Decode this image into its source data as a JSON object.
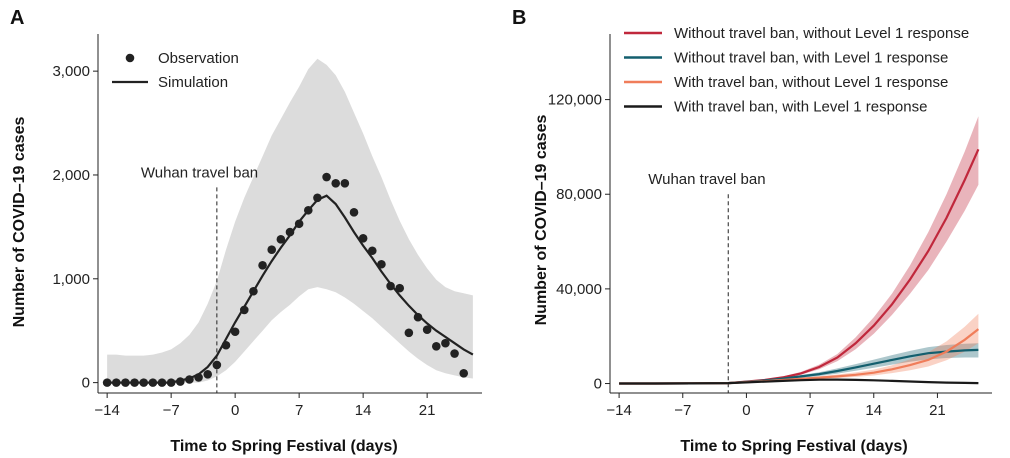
{
  "chart_data": [
    {
      "panel_label": "A",
      "type": "scatter",
      "xlabel": "Time to Spring Festival (days)",
      "ylabel": "Number of COVID–19 cases",
      "xlim": [
        -15,
        27
      ],
      "ylim": [
        -100,
        3300
      ],
      "xticks": [
        -14,
        -7,
        0,
        7,
        14,
        21
      ],
      "xtick_labels": [
        "−14",
        "−7",
        "0",
        "7",
        "14",
        "21"
      ],
      "yticks": [
        0,
        1000,
        2000,
        3000
      ],
      "ytick_labels": [
        "0",
        "1,000",
        "2,000",
        "3,000"
      ],
      "grid": false,
      "legend_position": "top-left",
      "legend": [
        {
          "label": "Observation",
          "marker": "point"
        },
        {
          "label": "Simulation",
          "marker": "line"
        }
      ],
      "annotation": {
        "text": "Wuhan travel ban",
        "x": -2
      },
      "band_color": "#dcdcdc",
      "band": {
        "x": [
          -14,
          -13,
          -12,
          -11,
          -10,
          -9,
          -8,
          -7,
          -6,
          -5,
          -4,
          -3,
          -2,
          -1,
          0,
          1,
          2,
          3,
          4,
          5,
          6,
          7,
          8,
          9,
          10,
          11,
          12,
          13,
          14,
          15,
          16,
          17,
          18,
          19,
          20,
          21,
          22,
          23,
          24,
          25,
          26
        ],
        "lower": [
          0,
          0,
          0,
          0,
          0,
          0,
          0,
          0,
          0,
          0,
          0,
          20,
          60,
          120,
          200,
          300,
          400,
          500,
          600,
          680,
          750,
          830,
          900,
          920,
          900,
          870,
          820,
          760,
          690,
          620,
          540,
          460,
          380,
          300,
          230,
          170,
          120,
          90,
          70,
          50,
          40
        ],
        "upper": [
          270,
          270,
          260,
          260,
          260,
          270,
          290,
          320,
          380,
          460,
          580,
          760,
          980,
          1280,
          1550,
          1780,
          1980,
          2180,
          2380,
          2540,
          2700,
          2850,
          3020,
          3120,
          3060,
          2960,
          2800,
          2600,
          2400,
          2180,
          1980,
          1760,
          1560,
          1380,
          1230,
          1100,
          990,
          920,
          880,
          860,
          840
        ]
      },
      "series": [
        {
          "name": "Observation",
          "kind": "points",
          "color": "#222222",
          "x": [
            -14,
            -13,
            -12,
            -11,
            -10,
            -9,
            -8,
            -7,
            -6,
            -5,
            -4,
            -3,
            -2,
            -1,
            0,
            1,
            2,
            3,
            4,
            5,
            6,
            7,
            8,
            9,
            10,
            11,
            12,
            13,
            14,
            15,
            16,
            17,
            18,
            19,
            20,
            21,
            22,
            23,
            24,
            25
          ],
          "y": [
            0,
            0,
            0,
            0,
            0,
            0,
            0,
            0,
            10,
            30,
            50,
            80,
            170,
            360,
            490,
            700,
            880,
            1130,
            1280,
            1380,
            1450,
            1530,
            1660,
            1780,
            1980,
            1920,
            1920,
            1640,
            1390,
            1270,
            1140,
            930,
            910,
            480,
            630,
            510,
            350,
            380,
            280,
            90
          ]
        },
        {
          "name": "Simulation",
          "kind": "line",
          "color": "#222222",
          "x": [
            -14,
            -13,
            -12,
            -11,
            -10,
            -9,
            -8,
            -7,
            -6,
            -5,
            -4,
            -3,
            -2,
            -1,
            0,
            1,
            2,
            3,
            4,
            5,
            6,
            7,
            8,
            9,
            10,
            11,
            12,
            13,
            14,
            15,
            16,
            17,
            18,
            19,
            20,
            21,
            22,
            23,
            24,
            25,
            26
          ],
          "y": [
            0,
            0,
            0,
            0,
            0,
            0,
            0,
            0,
            20,
            40,
            80,
            150,
            260,
            420,
            580,
            730,
            880,
            1030,
            1170,
            1300,
            1420,
            1550,
            1660,
            1760,
            1800,
            1720,
            1590,
            1450,
            1320,
            1200,
            1070,
            950,
            840,
            740,
            650,
            570,
            500,
            440,
            380,
            320,
            270
          ]
        }
      ]
    },
    {
      "panel_label": "B",
      "type": "line",
      "xlabel": "Time to Spring Festival (days)",
      "ylabel": "Number of COVID–19 cases",
      "xlim": [
        -15,
        27
      ],
      "ylim": [
        -4000,
        138000
      ],
      "xticks": [
        -14,
        -7,
        0,
        7,
        14,
        21
      ],
      "xtick_labels": [
        "−14",
        "−7",
        "0",
        "7",
        "14",
        "21"
      ],
      "yticks": [
        0,
        40000,
        80000,
        120000
      ],
      "ytick_labels": [
        "0",
        "40,000",
        "80,000",
        "120,000"
      ],
      "grid": false,
      "legend_position": "top",
      "annotation": {
        "text": "Wuhan travel ban",
        "x": -2
      },
      "series": [
        {
          "name": "Without travel ban, without Level 1 response",
          "color": "#c0283c",
          "x": [
            -14,
            -10,
            -6,
            -2,
            0,
            2,
            4,
            6,
            8,
            10,
            12,
            14,
            16,
            18,
            20,
            22,
            24,
            25.5
          ],
          "y": [
            0,
            0,
            50,
            200,
            800,
            1500,
            2600,
            4300,
            7000,
            11000,
            17000,
            24500,
            33500,
            44000,
            56000,
            70000,
            86000,
            99000
          ],
          "band_lower": [
            0,
            0,
            0,
            100,
            600,
            1200,
            2200,
            3700,
            6000,
            9500,
            14500,
            21000,
            29000,
            38000,
            48000,
            60000,
            73000,
            84000
          ],
          "band_upper": [
            0,
            0,
            100,
            300,
            1000,
            1800,
            3000,
            4900,
            8000,
            12500,
            19500,
            28000,
            38000,
            50000,
            64000,
            80000,
            98000,
            113000
          ]
        },
        {
          "name": "Without travel ban, with Level 1 response",
          "color": "#135f6e",
          "x": [
            -14,
            -10,
            -6,
            -2,
            0,
            2,
            4,
            6,
            8,
            10,
            12,
            14,
            16,
            18,
            20,
            22,
            24,
            25.5
          ],
          "y": [
            0,
            0,
            50,
            200,
            700,
            1300,
            2100,
            3000,
            4000,
            5300,
            6800,
            8400,
            10000,
            11500,
            12800,
            13500,
            14000,
            14200
          ],
          "band_lower": [
            0,
            0,
            0,
            100,
            500,
            1000,
            1700,
            2400,
            3200,
            4200,
            5400,
            6700,
            8000,
            9200,
            10200,
            10800,
            11000,
            11000
          ],
          "band_upper": [
            0,
            0,
            100,
            300,
            900,
            1600,
            2500,
            3600,
            4800,
            6400,
            8200,
            10100,
            12000,
            13800,
            15400,
            16300,
            16800,
            17000
          ]
        },
        {
          "name": "With travel ban, without Level 1 response",
          "color": "#f07d5a",
          "x": [
            -14,
            -10,
            -6,
            -2,
            0,
            2,
            4,
            6,
            8,
            10,
            12,
            14,
            16,
            18,
            20,
            22,
            24,
            25.5
          ],
          "y": [
            0,
            0,
            50,
            200,
            600,
            1000,
            1500,
            2000,
            2500,
            3000,
            3700,
            4600,
            6000,
            7800,
            10000,
            13500,
            18500,
            23000
          ],
          "band_lower": [
            0,
            0,
            0,
            100,
            400,
            700,
            1100,
            1500,
            1900,
            2300,
            2800,
            3400,
            4400,
            5600,
            7200,
            9800,
            13500,
            17000
          ],
          "band_upper": [
            0,
            0,
            100,
            300,
            800,
            1300,
            1900,
            2500,
            3100,
            3800,
            4700,
            5900,
            7700,
            10200,
            13200,
            17800,
            24000,
            29500
          ]
        },
        {
          "name": "With travel ban, with Level 1 response",
          "color": "#1a1a1a",
          "x": [
            -14,
            -10,
            -6,
            -2,
            0,
            2,
            4,
            6,
            8,
            10,
            12,
            14,
            16,
            18,
            20,
            22,
            24,
            25.5
          ],
          "y": [
            0,
            0,
            50,
            200,
            500,
            800,
            1100,
            1400,
            1600,
            1650,
            1550,
            1350,
            1100,
            850,
            600,
            400,
            280,
            200
          ],
          "band_lower": [
            0,
            0,
            0,
            100,
            400,
            650,
            900,
            1150,
            1300,
            1350,
            1250,
            1100,
            900,
            700,
            480,
            320,
            220,
            150
          ],
          "band_upper": [
            0,
            0,
            100,
            300,
            600,
            950,
            1300,
            1650,
            1900,
            1950,
            1850,
            1600,
            1300,
            1000,
            720,
            480,
            340,
            250
          ]
        }
      ]
    }
  ]
}
